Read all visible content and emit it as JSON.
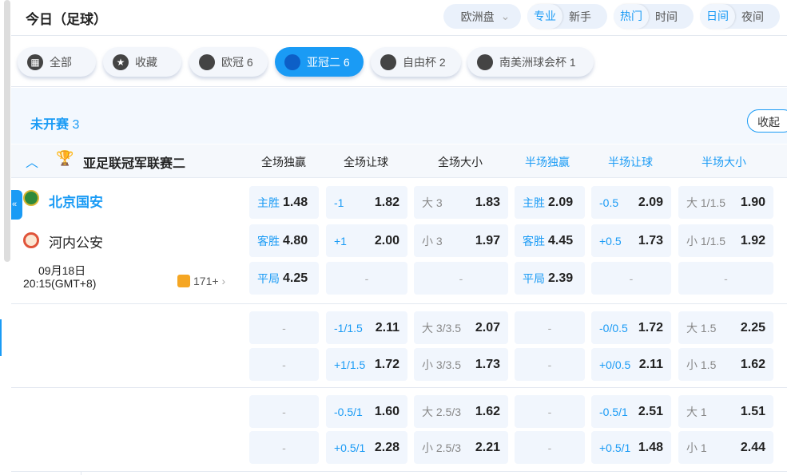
{
  "header": {
    "title": "今日（足球）",
    "odds_type": "欧洲盘",
    "mode": [
      "专业",
      "新手"
    ],
    "sort": [
      "热门",
      "时间"
    ],
    "theme": [
      "日间",
      "夜间"
    ]
  },
  "tabs": [
    {
      "label": "全部",
      "icon": "grid-icon"
    },
    {
      "label": "收藏",
      "icon": "star-icon"
    },
    {
      "label": "欧冠 6",
      "icon": "trophy-icon"
    },
    {
      "label": "亚冠二 6",
      "icon": "trophy-icon",
      "active": true
    },
    {
      "label": "自由杯 2",
      "icon": "trophy-icon"
    },
    {
      "label": "南美洲球会杯 1",
      "icon": "trophy-icon"
    }
  ],
  "section": {
    "label": "未开赛",
    "count": "3",
    "collapse": "收起"
  },
  "league": {
    "name": "亚足联冠军联赛二",
    "columns": [
      "全场独赢",
      "全场让球",
      "全场大小",
      "半场独赢",
      "半场让球",
      "半场大小"
    ]
  },
  "match": {
    "home": "北京国安",
    "away": "河内公安",
    "date": "09月18日",
    "time": "20:15(GMT+8)",
    "more": "171+"
  },
  "rows": [
    [
      [
        "主胜",
        "1.48"
      ],
      [
        "-1",
        "1.82"
      ],
      [
        "大 3",
        "1.83"
      ],
      [
        "主胜",
        "2.09"
      ],
      [
        "-0.5",
        "2.09"
      ],
      [
        "大 1/1.5",
        "1.90"
      ]
    ],
    [
      [
        "客胜",
        "4.80"
      ],
      [
        "+1",
        "2.00"
      ],
      [
        "小 3",
        "1.97"
      ],
      [
        "客胜",
        "4.45"
      ],
      [
        "+0.5",
        "1.73"
      ],
      [
        "小 1/1.5",
        "1.92"
      ]
    ],
    [
      [
        "平局",
        "4.25"
      ],
      [
        "-",
        ""
      ],
      [
        "-",
        ""
      ],
      [
        "平局",
        "2.39"
      ],
      [
        "-",
        ""
      ],
      [
        "-",
        ""
      ]
    ],
    [
      [
        "-",
        ""
      ],
      [
        "-1/1.5",
        "2.11"
      ],
      [
        "大 3/3.5",
        "2.07"
      ],
      [
        "-",
        ""
      ],
      [
        "-0/0.5",
        "1.72"
      ],
      [
        "大 1.5",
        "2.25"
      ]
    ],
    [
      [
        "-",
        ""
      ],
      [
        "+1/1.5",
        "1.72"
      ],
      [
        "小 3/3.5",
        "1.73"
      ],
      [
        "-",
        ""
      ],
      [
        "+0/0.5",
        "2.11"
      ],
      [
        "小 1.5",
        "1.62"
      ]
    ],
    [
      [
        "-",
        ""
      ],
      [
        "-0.5/1",
        "1.60"
      ],
      [
        "大 2.5/3",
        "1.62"
      ],
      [
        "-",
        ""
      ],
      [
        "-0.5/1",
        "2.51"
      ],
      [
        "大 1",
        "1.51"
      ]
    ],
    [
      [
        "-",
        ""
      ],
      [
        "+0.5/1",
        "2.28"
      ],
      [
        "小 2.5/3",
        "2.21"
      ],
      [
        "-",
        ""
      ],
      [
        "+0.5/1",
        "1.48"
      ],
      [
        "小 1",
        "2.44"
      ]
    ]
  ]
}
